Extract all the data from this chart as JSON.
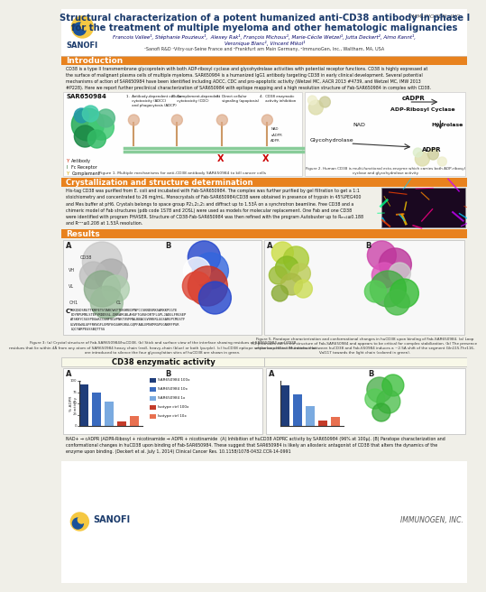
{
  "title_line1": "Structural characterization of a potent humanized anti-CD38 antibody in phase I",
  "title_line2": "for the treatment of multiple myeloma and other hematologic malignancies",
  "title_color": "#1a3a6b",
  "authors_line1": "Francois Vallee¹, Stéphanie Pouzieux¹,  Alexey Rak¹, François Michoux¹, Marie-Cécile Wetzel¹, Jutta Deckert², Aimo Kannt¹,",
  "authors_line2": "Veronique Blanc¹, Vincent Mikol¹",
  "affiliations": "¹Sanofi R&D ¹Vitry-sur-Seine France and ²Frankfurt am Main Germany, ²ImmunoGen, Inc., Waltham, MA, USA",
  "section_intro_title": "Introduction",
  "section_crystal_title": "Crystallization and structure determination",
  "section_results_title": "Results",
  "section_cd38_title": "CD38 enzymatic activity",
  "orange_color": "#e8821e",
  "header_bg": "#ffffff",
  "body_bg": "#f0efe8",
  "panel_bg": "#ffffff",
  "intro_text": "CD38 is a type II transmembrane glycoprotein with both ADP-ribosyl cyclase and glycohydrolase activities with potential receptor functions. CD38 is highly expressed at the surface of malignant plasma cells of multiple myeloma. SAR650984 is a humanized IgG1 antibody targeting CD38 in early clinical development. Several potential mechanisms of action of SAR650984 have been identified including ADCC, CDC and pro-apoptotic activity (Wetzel MC, AACR 2013 #4739, and Wetzel MC, IMW 2013 #P228). Here we report further preclinical characterization of SAR650984 with epitope mapping and a high resolution structure of Fab-SAR650984 in complex with CD38.",
  "crystal_text": "His-tag CD38 was purified from E. coli and incubated with Fab-SAR650984. The complex was further purified by gel filtration to get a 1:1 stoichiometry and concentrated to 26 mg/mL. Monocrystals of Fab-SAR650984/CD38 were obtained in presence of trypsin in 45%PEG400 and Mes buffer at pH6. Crystals belongs to space group P2₁,2₁,2₁ and diffract up to 1.53Å on a synchrotron beamline. Free CD38 and a chimeric model of Fab structures (pdb code 1S78 and 2OSL) were used as models for molecular replacement. One Fab and one CD38 were identified with program PHASER. Structure of CD38-Fab-SAR650984 was then refined with the program Autobuster up to Rₘₓ₂≤0.188 and Rᵄᵅᵉ≤0.208 at 1.53Å resolution.",
  "fig1_caption": "Figure 1. Multiple mechanisms for anti-CD38 antibody SAR650984 to kill cancer cells",
  "fig2_caption": "Figure 2. Human CD38 is multi-functional ecto-enzyme which carries both ADP-ribosyl\ncyclase and glycohydrolase activity",
  "fig3_caption": "Figure 3: (a) Crystal structure of Fab-SAR650984/huCD38. (b) Stick and surface view of the interface showing residues of SAR650984 and CD38 residues that lie within 4Å from any atom of SAR650984 heavy chain (red), heavy-chain (blue) or both (purple). (c) huCD38 epitope sequence context. Mutations that are introduced to silence the four glycosylation sites of huCD38 are shown in green.",
  "fig5_caption": "Figure 5. Paratope characterization and conformational changes in huCD38 upon binding of Fab-SAR650984. (a) Loop H3 protrudes out of the structure of Fab-SAR650984 and appears to be critical for complex stabilization. (b) The presence of the loop H3 in the interface between huCD38 and Fab-650984 induces a ~2.5A shift of the segment Gln115-Thr116-Val117 towards the light chain (colored in green).",
  "bottom_caption": "NAD+ → cADPR (ADPR-Ribosyl + nicotinamide → ADPR + nicotinamide  (A) Inhibition of huCD38 ADPRC activity by SAR650984 (96% at 100µ). (B) Paratope characterization and conformational changes in huCD38 upon binding of Fab-SAR650984. These suggest that SAR650984 is likely an allosteric antagonist of CD38 that alters the dynamics of the enzyme upon binding.",
  "bottom_ref": "(Deckert et al. July 1, 2014) Clinical Cancer Res. 10.1158/1078-0432.CCR-14-0991",
  "cd38_legend": [
    "SAR650984 100x",
    "SAR650984 10x",
    "SAR650984 1x",
    "Isotype ctrl 100x",
    "Isotype ctrl 10x"
  ],
  "cd38_colors": [
    "#1f3d7a",
    "#3a6bbf",
    "#7aaae0",
    "#c43c2a",
    "#e87050"
  ],
  "sanofi_logo_color": "#f7941d",
  "sanofi_text_color": "#1a3a6b"
}
